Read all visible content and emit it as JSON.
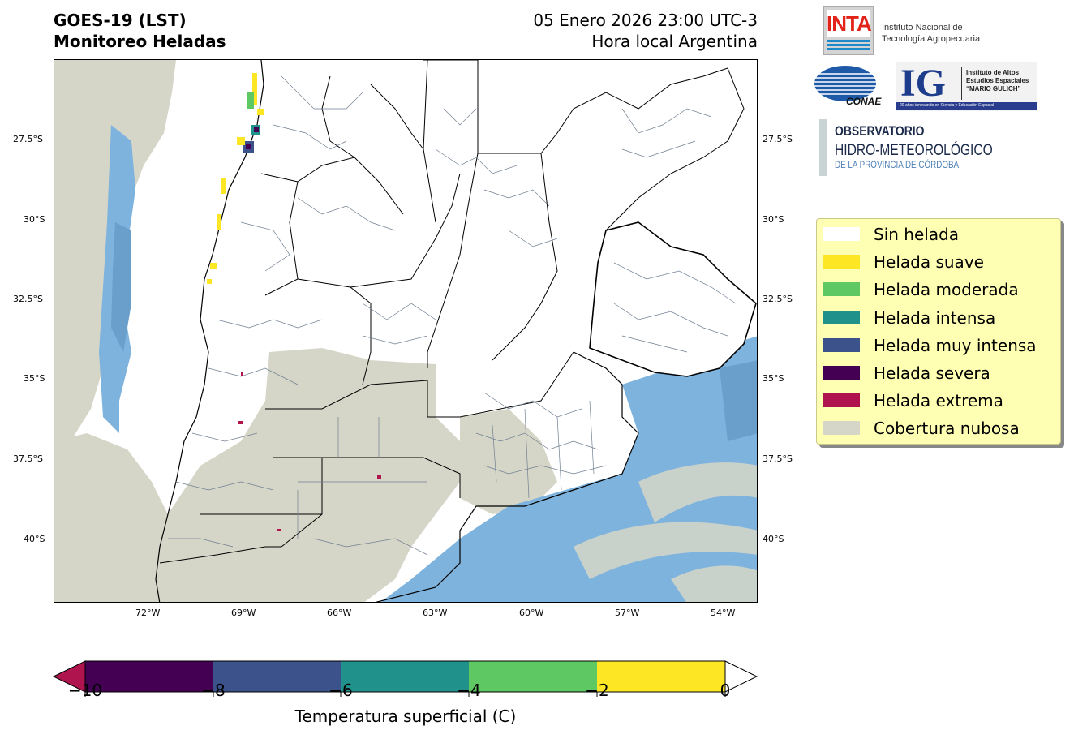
{
  "title": {
    "line1": "GOES-19 (LST)",
    "line2": "Monitoreo Heladas",
    "date": "05 Enero 2026 23:00 UTC-3",
    "local": "Hora local Argentina"
  },
  "map": {
    "lat_labels": [
      "27.5°S",
      "30°S",
      "32.5°S",
      "35°S",
      "37.5°S",
      "40°S"
    ],
    "lon_labels": [
      "72°W",
      "69°W",
      "66°W",
      "63°W",
      "60°W",
      "57°W",
      "54°W"
    ],
    "colors": {
      "clear": "#ffffff",
      "cloud": "#d6d6c8",
      "sea": "#7eb3de",
      "sea_dark": "#6a9fcc",
      "border": "#000000",
      "dept": "#6f7f91"
    }
  },
  "legend": {
    "items": [
      {
        "label": "Sin helada",
        "color": "#ffffff"
      },
      {
        "label": "Helada suave",
        "color": "#fde725"
      },
      {
        "label": "Helada moderada",
        "color": "#5ec962"
      },
      {
        "label": "Helada intensa",
        "color": "#21918c"
      },
      {
        "label": "Helada muy intensa",
        "color": "#3b528b"
      },
      {
        "label": "Helada severa",
        "color": "#440154"
      },
      {
        "label": "Helada extrema",
        "color": "#b0144f"
      },
      {
        "label": "Cobertura nubosa",
        "color": "#d6d6c8"
      }
    ]
  },
  "colorbar": {
    "ticks": [
      "−10",
      "−8",
      "−6",
      "−4",
      "−2",
      "0"
    ],
    "label": "Temperatura superficial (C)",
    "under_color": "#b0144f",
    "segments": [
      "#440154",
      "#3b528b",
      "#21918c",
      "#5ec962",
      "#fde725"
    ],
    "over_color": "#ffffff"
  },
  "logos": {
    "inta_mark": "INTA",
    "inta_name_1": "Instituto Nacional de",
    "inta_name_2": "Tecnología Agropecuaria",
    "conae": "CONAE",
    "ig_mark": "IG",
    "ig_text_1": "Instituto de Altos",
    "ig_text_2": "Estudios Espaciales",
    "ig_text_3": "“MARIO GULICH”",
    "ig_bar": "20 años innovando en Ciencia y Educación Espacial",
    "obs_1": "OBSERVATORIO",
    "obs_2": "HIDRO-METEOROLÓGICO",
    "obs_3": "DE LA PROVINCIA DE CÓRDOBA"
  }
}
